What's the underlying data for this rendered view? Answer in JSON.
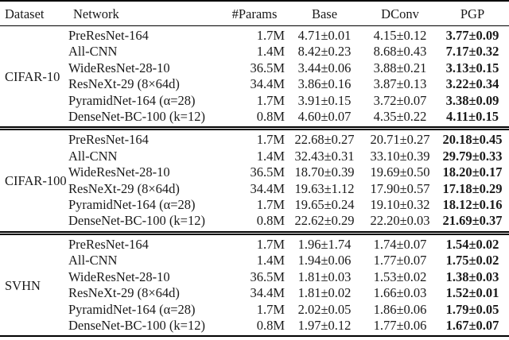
{
  "colors": {
    "text": "#1a1a1a",
    "rule": "#000000"
  },
  "table": {
    "headers": [
      "Dataset",
      "Network",
      "#Params",
      "Base",
      "DConv",
      "PGP"
    ],
    "groups": [
      {
        "dataset": "CIFAR-10",
        "rows": [
          {
            "network": "PreResNet-164",
            "params": "1.7M",
            "base": "4.71±0.01",
            "dconv": "4.15±0.12",
            "pgp": "3.77±0.09"
          },
          {
            "network": "All-CNN",
            "params": "1.4M",
            "base": "8.42±0.23",
            "dconv": "8.68±0.43",
            "pgp": "7.17±0.32"
          },
          {
            "network": "WideResNet-28-10",
            "params": "36.5M",
            "base": "3.44±0.06",
            "dconv": "3.88±0.21",
            "pgp": "3.13±0.15"
          },
          {
            "network": "ResNeXt-29 (8×64d)",
            "params": "34.4M",
            "base": "3.86±0.16",
            "dconv": "3.87±0.13",
            "pgp": "3.22±0.34"
          },
          {
            "network": "PyramidNet-164 (α=28)",
            "params": "1.7M",
            "base": "3.91±0.15",
            "dconv": "3.72±0.07",
            "pgp": "3.38±0.09"
          },
          {
            "network": "DenseNet-BC-100 (k=12)",
            "params": "0.8M",
            "base": "4.60±0.07",
            "dconv": "4.35±0.22",
            "pgp": "4.11±0.15"
          }
        ]
      },
      {
        "dataset": "CIFAR-100",
        "rows": [
          {
            "network": "PreResNet-164",
            "params": "1.7M",
            "base": "22.68±0.27",
            "dconv": "20.71±0.27",
            "pgp": "20.18±0.45"
          },
          {
            "network": "All-CNN",
            "params": "1.4M",
            "base": "32.43±0.31",
            "dconv": "33.10±0.39",
            "pgp": "29.79±0.33"
          },
          {
            "network": "WideResNet-28-10",
            "params": "36.5M",
            "base": "18.70±0.39",
            "dconv": "19.69±0.50",
            "pgp": "18.20±0.17"
          },
          {
            "network": "ResNeXt-29 (8×64d)",
            "params": "34.4M",
            "base": "19.63±1.12",
            "dconv": "17.90±0.57",
            "pgp": "17.18±0.29"
          },
          {
            "network": "PyramidNet-164 (α=28)",
            "params": "1.7M",
            "base": "19.65±0.24",
            "dconv": "19.10±0.32",
            "pgp": "18.12±0.16"
          },
          {
            "network": "DenseNet-BC-100 (k=12)",
            "params": "0.8M",
            "base": "22.62±0.29",
            "dconv": "22.20±0.03",
            "pgp": "21.69±0.37"
          }
        ]
      },
      {
        "dataset": "SVHN",
        "rows": [
          {
            "network": "PreResNet-164",
            "params": "1.7M",
            "base": "1.96±1.74",
            "dconv": "1.74±0.07",
            "pgp": "1.54±0.02"
          },
          {
            "network": "All-CNN",
            "params": "1.4M",
            "base": "1.94±0.06",
            "dconv": "1.77±0.07",
            "pgp": "1.75±0.02"
          },
          {
            "network": "WideResNet-28-10",
            "params": "36.5M",
            "base": "1.81±0.03",
            "dconv": "1.53±0.02",
            "pgp": "1.38±0.03"
          },
          {
            "network": "ResNeXt-29 (8×64d)",
            "params": "34.4M",
            "base": "1.81±0.02",
            "dconv": "1.66±0.03",
            "pgp": "1.52±0.01"
          },
          {
            "network": "PyramidNet-164 (α=28)",
            "params": "1.7M",
            "base": "2.02±0.05",
            "dconv": "1.86±0.06",
            "pgp": "1.79±0.05"
          },
          {
            "network": "DenseNet-BC-100 (k=12)",
            "params": "0.8M",
            "base": "1.97±0.12",
            "dconv": "1.77±0.06",
            "pgp": "1.67±0.07"
          }
        ]
      }
    ]
  }
}
